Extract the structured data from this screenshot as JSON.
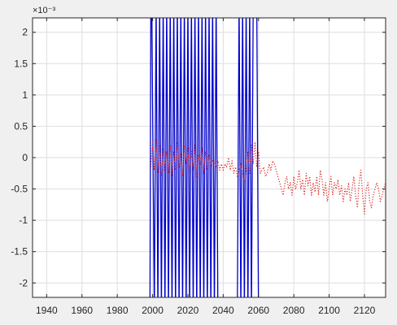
{
  "chart_data": {
    "type": "line",
    "title": "",
    "xlabel": "",
    "ylabel": "",
    "exponent_label": "×10⁻³",
    "xlim": [
      1932,
      2132
    ],
    "ylim": [
      -0.00223,
      0.00223
    ],
    "grid": true,
    "legend": "none",
    "x_ticks": [
      1940,
      1960,
      1980,
      2000,
      2020,
      2040,
      2060,
      2080,
      2100,
      2120
    ],
    "x_tick_labels": [
      "1940",
      "1960",
      "1980",
      "2000",
      "2020",
      "2040",
      "2060",
      "2080",
      "2100",
      "2120"
    ],
    "y_ticks": [
      0.002,
      0.0015,
      0.001,
      0.0005,
      0,
      -0.0005,
      -0.001,
      -0.0015,
      -0.002
    ],
    "y_tick_labels": [
      "2",
      "1.5",
      "1",
      "0.5",
      "0",
      "-0.5",
      "-1",
      "-1.5",
      "-2"
    ],
    "series": [
      {
        "color": "#0000cc",
        "style": "solid",
        "x": [
          1932,
          1998.5,
          1999,
          1999.5,
          2001,
          2002,
          2003,
          2004,
          2005,
          2006,
          2007,
          2008,
          2009,
          2010,
          2011,
          2012,
          2013,
          2014,
          2015,
          2016,
          2017,
          2018,
          2019,
          2020,
          2021,
          2022,
          2023,
          2024,
          2025,
          2026,
          2027,
          2028,
          2029,
          2030,
          2031,
          2032,
          2033,
          2034,
          2035,
          2036,
          2037,
          2038,
          2039,
          2040,
          2041,
          2042,
          2043,
          2044,
          2045,
          2046,
          2047,
          2048,
          2049,
          2050,
          2051,
          2052,
          2053,
          2054,
          2055,
          2056,
          2057,
          2058,
          2059,
          2060,
          2061,
          2070,
          2080,
          2090,
          2100,
          2110,
          2120,
          2132
        ],
        "y": [
          -0.0025,
          -0.0025,
          0.0025,
          0.0025,
          -0.0025,
          0.0025,
          -0.0025,
          0.0025,
          -0.0025,
          0.0025,
          -0.0025,
          0.0025,
          -0.0025,
          0.0025,
          -0.0025,
          0.0025,
          -0.0025,
          0.0025,
          -0.0025,
          0.0025,
          -0.0025,
          0.0025,
          -0.0025,
          0.0025,
          -0.0025,
          0.0025,
          -0.0025,
          0.0025,
          -0.0025,
          0.0025,
          -0.0025,
          0.0025,
          -0.0025,
          0.0025,
          -0.0025,
          0.0025,
          -0.0025,
          0.0025,
          -0.0025,
          0.0025,
          -0.0025,
          -0.0025,
          -0.0025,
          -0.0025,
          -0.0025,
          -0.0025,
          -0.0025,
          -0.0025,
          -0.0025,
          -0.0025,
          -0.0025,
          -0.0025,
          0.0025,
          -0.0025,
          0.0025,
          -0.0025,
          0.0025,
          -0.0025,
          0.0025,
          -0.0025,
          0.0025,
          0.0025,
          0.0025,
          -0.0025,
          -0.0025,
          -0.0025,
          -0.0025,
          -0.0025,
          -0.0025,
          -0.0025,
          -0.0025,
          -0.0025
        ]
      },
      {
        "color": "#dd2222",
        "style": "dotted",
        "x": [
          1999,
          2000,
          2001,
          2002,
          2003,
          2004,
          2005,
          2006,
          2007,
          2008,
          2009,
          2010,
          2011,
          2012,
          2013,
          2014,
          2015,
          2016,
          2017,
          2018,
          2019,
          2020,
          2021,
          2022,
          2023,
          2024,
          2025,
          2026,
          2027,
          2028,
          2029,
          2030,
          2031,
          2032,
          2033,
          2034,
          2035,
          2036,
          2037,
          2038,
          2039,
          2040,
          2041,
          2042,
          2043,
          2044,
          2045,
          2046,
          2047,
          2048,
          2049,
          2050,
          2051,
          2052,
          2053,
          2054,
          2055,
          2056,
          2057,
          2058,
          2059,
          2060,
          2061,
          2062,
          2063,
          2064,
          2065,
          2066,
          2067,
          2068,
          2069,
          2070,
          2071,
          2072,
          2073,
          2074,
          2075,
          2076,
          2077,
          2078,
          2079,
          2080,
          2081,
          2082,
          2083,
          2084,
          2085,
          2086,
          2087,
          2088,
          2089,
          2090,
          2091,
          2092,
          2093,
          2094,
          2095,
          2096,
          2097,
          2098,
          2099,
          2100,
          2101,
          2102,
          2103,
          2104,
          2105,
          2106,
          2107,
          2108,
          2109,
          2110,
          2111,
          2112,
          2113,
          2114,
          2115,
          2116,
          2117,
          2118,
          2119,
          2120,
          2121,
          2122,
          2123,
          2124,
          2125,
          2126,
          2127,
          2128,
          2129,
          2130,
          2131,
          2132
        ],
        "y": [
          -0.00015,
          0.00025,
          -0.0002,
          0.0003,
          -0.00025,
          0.0002,
          -0.0003,
          0.00015,
          -0.0002,
          0.0001,
          -0.00025,
          0.0002,
          -0.0003,
          0.0001,
          -0.0002,
          0.00025,
          -0.00015,
          5e-05,
          -0.0003,
          0.0002,
          -0.0001,
          0.00015,
          -0.00025,
          0.0001,
          -0.0002,
          0.0002,
          -0.0003,
          5e-05,
          -0.0001,
          0.00015,
          -0.00025,
          0.0001,
          -0.0002,
          5e-05,
          -0.00015,
          -5e-05,
          -0.0001,
          -0.00015,
          -5e-05,
          -0.0002,
          -0.0001,
          -0.0002,
          -0.0001,
          -0.00015,
          0.0,
          -0.0002,
          -5e-05,
          -0.00025,
          -0.00015,
          -0.0003,
          -0.0002,
          -0.0001,
          -0.00025,
          -0.0004,
          -0.0002,
          0.0001,
          -0.00025,
          0.0002,
          -0.0001,
          0.00025,
          -0.00015,
          0.0001,
          -0.00025,
          -0.0002,
          -0.00015,
          -0.0003,
          -0.00025,
          -0.0001,
          -0.0002,
          -5e-05,
          -0.0001,
          -0.0002,
          -0.0003,
          -0.0004,
          -0.0005,
          -0.0006,
          -0.0004,
          -0.0003,
          -0.0005,
          -0.0004,
          -0.0006,
          -0.0003,
          -0.0005,
          -0.0004,
          -0.0002,
          -0.0005,
          -0.00035,
          -0.0006,
          -0.00025,
          -0.00045,
          -0.0003,
          -0.0006,
          -0.0004,
          -0.00055,
          -0.0003,
          -0.0006,
          -0.0002,
          -0.00035,
          -0.0006,
          -0.0004,
          -0.0007,
          -0.0005,
          -0.0003,
          -0.0006,
          -0.0004,
          -0.0005,
          -0.00035,
          -0.0006,
          -0.00045,
          -0.0007,
          -0.0005,
          -0.0006,
          -0.0004,
          -0.0007,
          -0.0005,
          -0.0003,
          -0.0006,
          -0.0008,
          -0.0004,
          -0.0002,
          -0.0006,
          -0.0009,
          -0.0005,
          -0.0004,
          -0.0007,
          -0.0008,
          -0.0006,
          -0.0005,
          -0.0004,
          -0.0005,
          -0.0007,
          -0.0006,
          -0.0005,
          -0.0004
        ]
      }
    ]
  }
}
